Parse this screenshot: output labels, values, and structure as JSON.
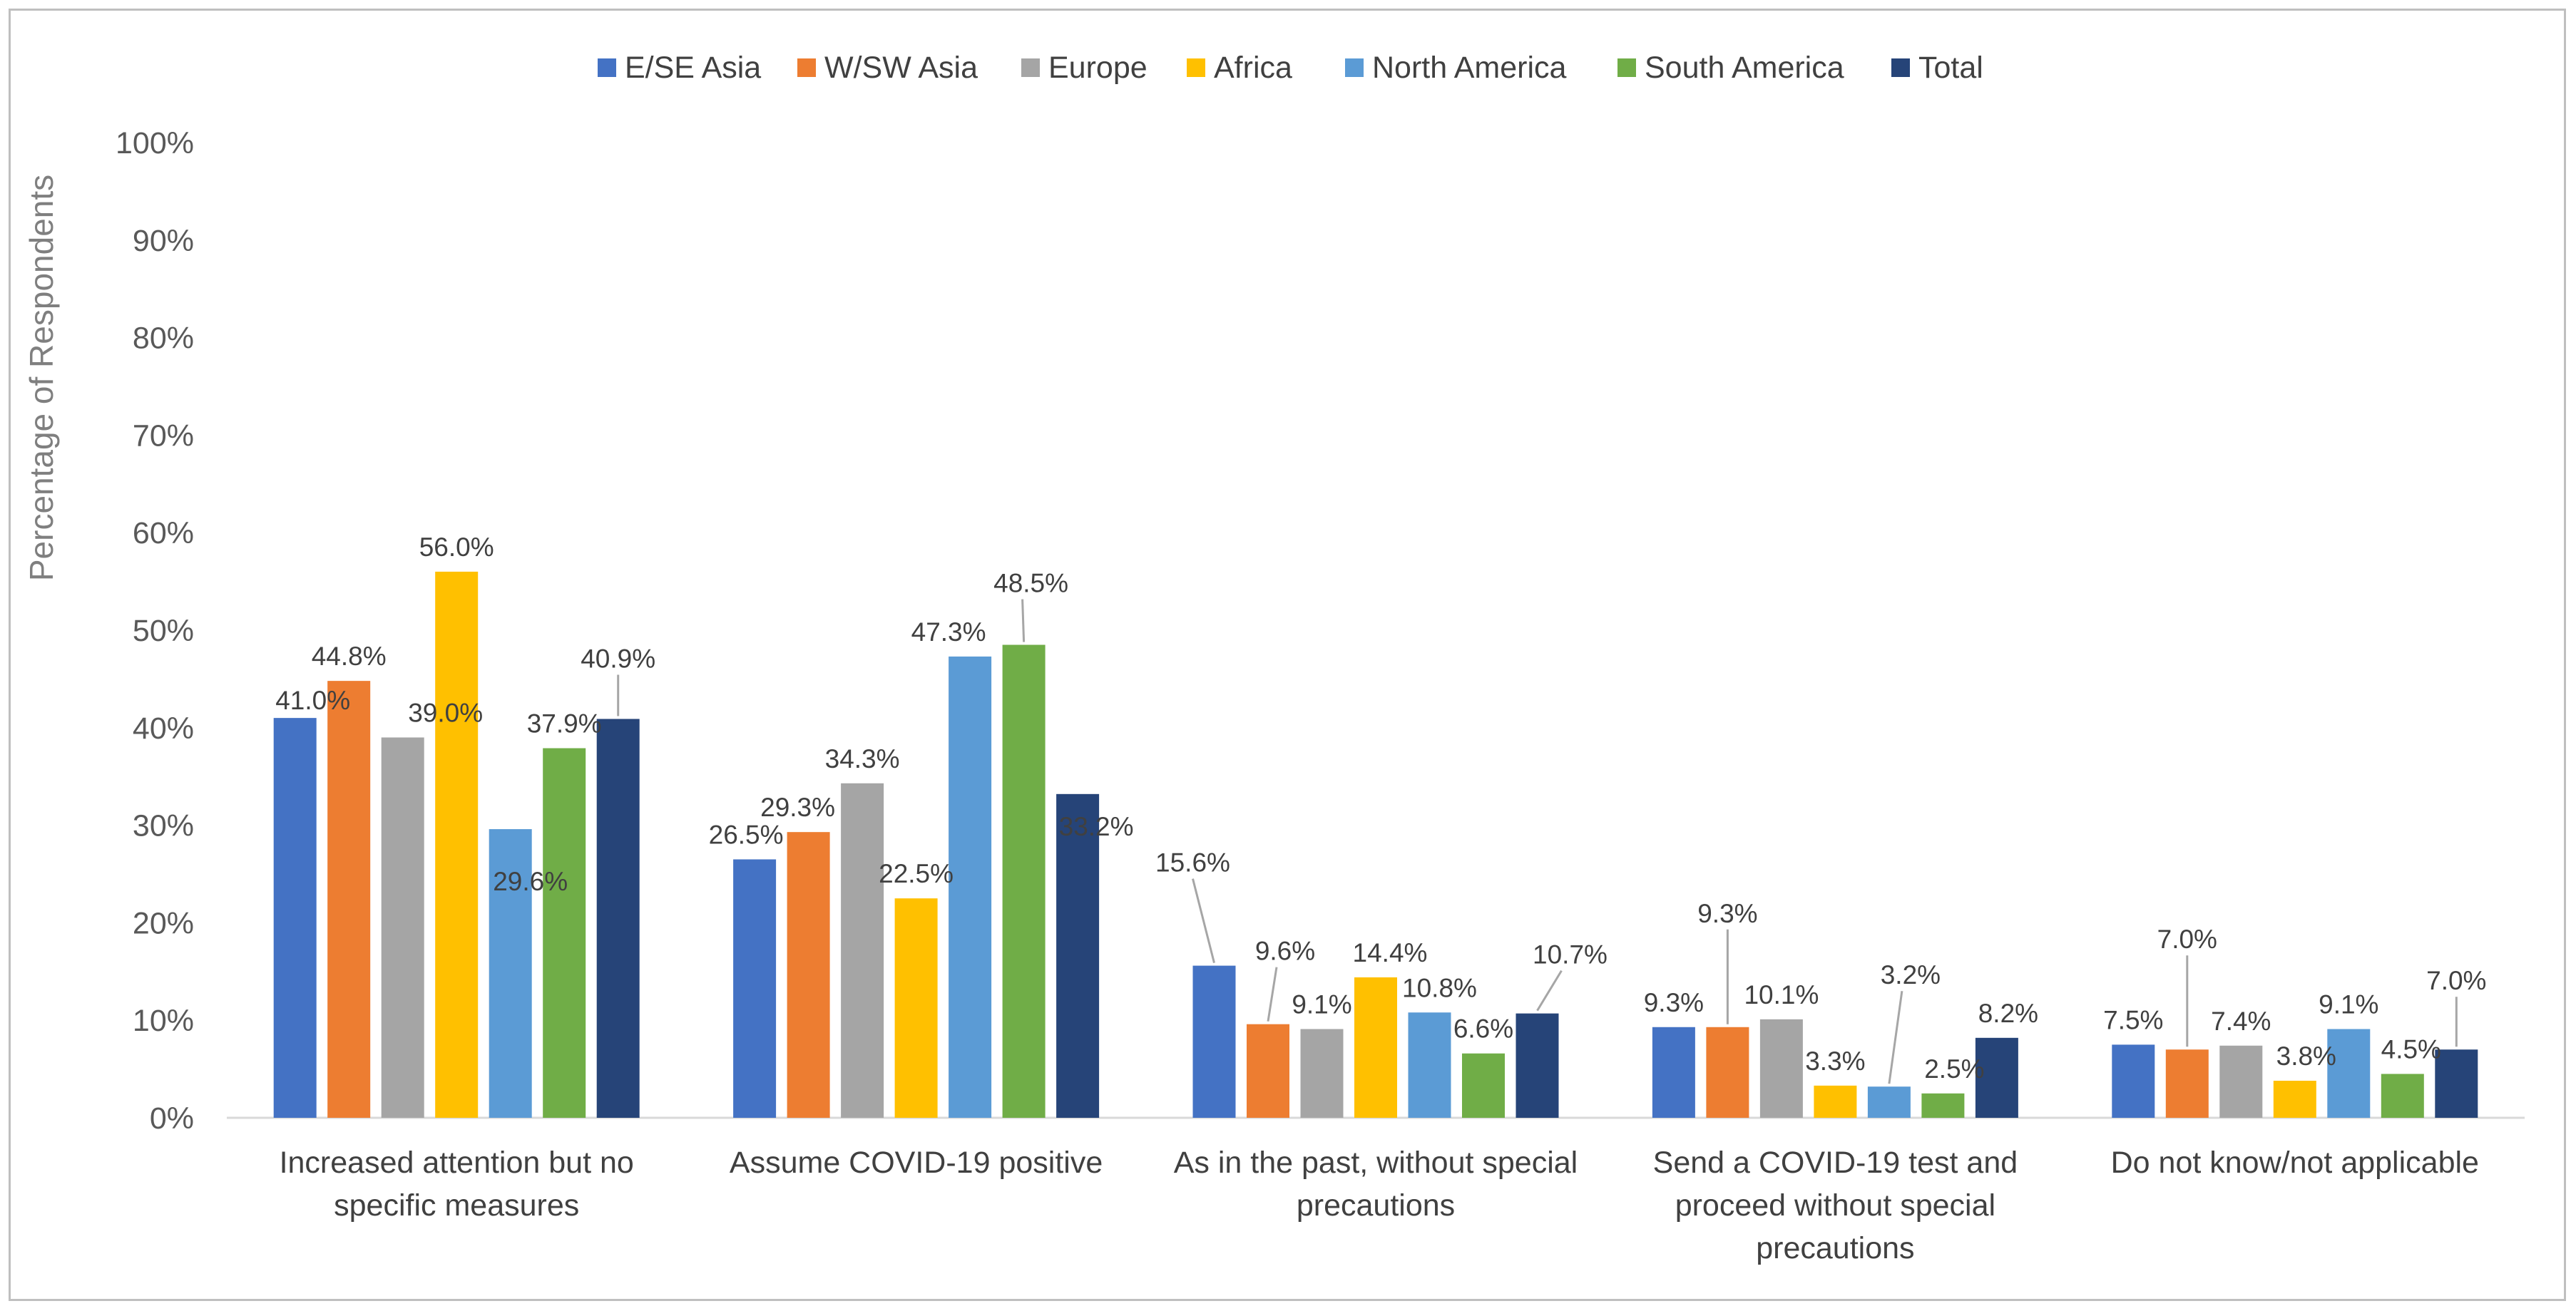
{
  "chart_data": {
    "type": "bar",
    "ylabel": "Percentage of Respondents",
    "xlabel": "",
    "ylim": [
      0,
      100
    ],
    "y_ticks": [
      "0%",
      "10%",
      "20%",
      "30%",
      "40%",
      "50%",
      "60%",
      "70%",
      "80%",
      "90%",
      "100%"
    ],
    "grid": false,
    "legend_position": "top",
    "categories": [
      [
        "Increased attention but no",
        "specific measures"
      ],
      [
        "Assume COVID-19 positive"
      ],
      [
        "As in the past, without special",
        "precautions"
      ],
      [
        "Send a COVID-19 test and",
        "proceed without special",
        "precautions"
      ],
      [
        "Do not know/not applicable"
      ]
    ],
    "series": [
      {
        "name": "E/SE Asia",
        "color": "#4472c4",
        "values": [
          41.0,
          26.5,
          15.6,
          9.3,
          7.5
        ],
        "labels": [
          "41.0%",
          "26.5%",
          "15.6%",
          "9.3%",
          "7.5%"
        ]
      },
      {
        "name": "W/SW Asia",
        "color": "#ed7d31",
        "values": [
          44.8,
          29.3,
          9.6,
          9.3,
          7.0
        ],
        "labels": [
          "44.8%",
          "29.3%",
          "9.6%",
          "9.3%",
          "7.0%"
        ]
      },
      {
        "name": "Europe",
        "color": "#a5a5a5",
        "values": [
          39.0,
          34.3,
          9.1,
          10.1,
          7.4
        ],
        "labels": [
          "39.0%",
          "34.3%",
          "9.1%",
          "10.1%",
          "7.4%"
        ]
      },
      {
        "name": "Africa",
        "color": "#ffc000",
        "values": [
          56.0,
          22.5,
          14.4,
          3.3,
          3.8
        ],
        "labels": [
          "56.0%",
          "22.5%",
          "14.4%",
          "3.3%",
          "3.8%"
        ]
      },
      {
        "name": "North America",
        "color": "#5b9bd5",
        "values": [
          29.6,
          47.3,
          10.8,
          3.2,
          9.1
        ],
        "labels": [
          "29.6%",
          "47.3%",
          "10.8%",
          "3.2%",
          "9.1%"
        ]
      },
      {
        "name": "South America",
        "color": "#70ad47",
        "values": [
          37.9,
          48.5,
          6.6,
          2.5,
          4.5
        ],
        "labels": [
          "37.9%",
          "48.5%",
          "6.6%",
          "2.5%",
          "4.5%"
        ]
      },
      {
        "name": "Total",
        "color": "#264478",
        "values": [
          40.9,
          33.2,
          10.7,
          8.2,
          7.0
        ],
        "labels": [
          "40.9%",
          "33.2%",
          "10.7%",
          "8.2%",
          "7.0%"
        ]
      }
    ]
  }
}
